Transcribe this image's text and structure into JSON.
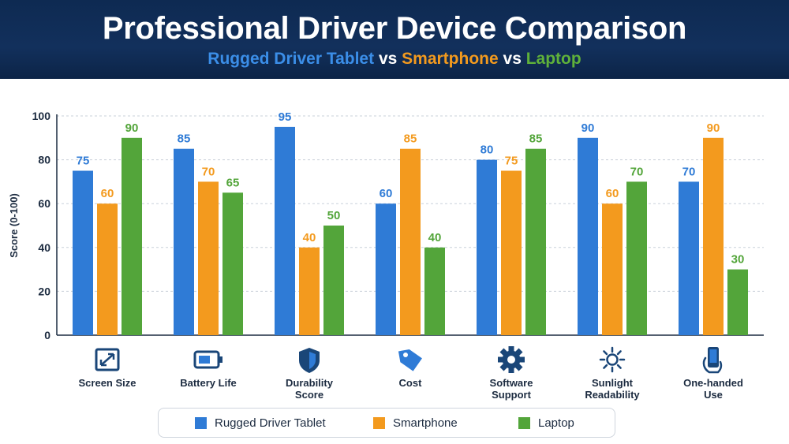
{
  "header": {
    "title": "Professional Driver Device Comparison",
    "subtitle_parts": [
      "Rugged Driver Tablet",
      "vs",
      "Smartphone",
      "vs",
      "Laptop"
    ]
  },
  "colors": {
    "tablet": "#2f7bd6",
    "smartphone": "#f39a1e",
    "laptop": "#53a53a",
    "icon": "#1a4678",
    "axis_text": "#1c2b40"
  },
  "chart_data": {
    "type": "bar",
    "ylabel": "Score (0-100)",
    "ylim": [
      0,
      100
    ],
    "yticks": [
      0,
      20,
      40,
      60,
      80,
      100
    ],
    "grid": true,
    "legend_position": "bottom",
    "categories": [
      {
        "label_lines": [
          "Screen Size"
        ],
        "icon": "resize-icon"
      },
      {
        "label_lines": [
          "Battery Life"
        ],
        "icon": "battery-icon"
      },
      {
        "label_lines": [
          "Durability",
          "Score"
        ],
        "icon": "shield-icon"
      },
      {
        "label_lines": [
          "Cost"
        ],
        "icon": "price-tag-icon"
      },
      {
        "label_lines": [
          "Software",
          "Support"
        ],
        "icon": "gear-icon"
      },
      {
        "label_lines": [
          "Sunlight",
          "Readability"
        ],
        "icon": "sun-icon"
      },
      {
        "label_lines": [
          "One-handed",
          "Use"
        ],
        "icon": "phone-hand-icon"
      }
    ],
    "series": [
      {
        "name": "Rugged Driver Tablet",
        "color": "#2f7bd6",
        "values": [
          75,
          85,
          95,
          60,
          80,
          90,
          70
        ]
      },
      {
        "name": "Smartphone",
        "color": "#f39a1e",
        "values": [
          60,
          70,
          40,
          85,
          75,
          60,
          90
        ]
      },
      {
        "name": "Laptop",
        "color": "#53a53a",
        "values": [
          90,
          65,
          50,
          40,
          85,
          70,
          30
        ]
      }
    ]
  }
}
